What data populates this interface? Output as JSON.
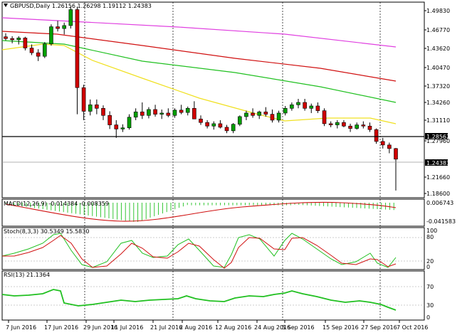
{
  "colors": {
    "bull": "#00a000",
    "bear": "#d00000",
    "wick": "#000000",
    "ma_pink": "#e040e0",
    "ma_red": "#d01010",
    "ma_green": "#20c020",
    "ma_yellow": "#f0e020",
    "macd_hist": "#20c020",
    "macd_signal": "#d01010",
    "stoch_main": "#20c020",
    "stoch_signal": "#d01010",
    "rsi": "#20c020"
  },
  "main": {
    "symbol": "GBPUSD",
    "timeframe": "Daily",
    "title": "GBPUSD,Daily  1.26156 1.26298 1.19112 1.24383",
    "y_labels": [
      "1.49830",
      "1.46770",
      "1.43620",
      "1.40470",
      "1.37320",
      "1.34260",
      "1.31110",
      "1.28562",
      "1.27960",
      "1.24383",
      "1.21660",
      "1.18600"
    ],
    "support_tag": "1.28562",
    "price_tag": "1.24383"
  },
  "macd": {
    "title": "MACD(12,26,9) -0.014384 -0.008359",
    "y_labels": [
      "0.006743",
      "-0.041583"
    ]
  },
  "stoch": {
    "title": "Stoch(8,3,3) 30.5349 15.5830",
    "y_labels": [
      "100",
      "80",
      "20",
      "0"
    ]
  },
  "rsi": {
    "title": "RSI(13) 21.1364",
    "y_labels": [
      "70",
      "30",
      "0"
    ]
  },
  "x_labels": [
    "7 Jun 2016",
    "17 Jun 2016",
    "29 Jun 2016",
    "11 Jul 2016",
    "21 Jul 2016",
    "2 Aug 2016",
    "12 Aug 2016",
    "24 Aug 2016",
    "5 Sep 2016",
    "15 Sep 2016",
    "27 Sep 2016",
    "7 Oct 2016"
  ],
  "chart_data": {
    "type": "candlestick",
    "symbol": "GBPUSD",
    "timeframe": "Daily",
    "candles_ohlc": [
      [
        1.451,
        1.457,
        1.445,
        1.448
      ],
      [
        1.448,
        1.452,
        1.44,
        1.446
      ],
      [
        1.446,
        1.452,
        1.438,
        1.449
      ],
      [
        1.449,
        1.451,
        1.428,
        1.432
      ],
      [
        1.432,
        1.438,
        1.42,
        1.424
      ],
      [
        1.424,
        1.43,
        1.41,
        1.418
      ],
      [
        1.418,
        1.442,
        1.415,
        1.439
      ],
      [
        1.439,
        1.472,
        1.436,
        1.468
      ],
      [
        1.468,
        1.478,
        1.46,
        1.465
      ],
      [
        1.465,
        1.475,
        1.455,
        1.47
      ],
      [
        1.47,
        1.502,
        1.465,
        1.497
      ],
      [
        1.497,
        1.502,
        1.32,
        1.365
      ],
      [
        1.365,
        1.37,
        1.31,
        1.325
      ],
      [
        1.325,
        1.345,
        1.318,
        1.336
      ],
      [
        1.336,
        1.345,
        1.32,
        1.33
      ],
      [
        1.33,
        1.335,
        1.31,
        1.318
      ],
      [
        1.318,
        1.325,
        1.295,
        1.302
      ],
      [
        1.302,
        1.31,
        1.28,
        1.295
      ],
      [
        1.295,
        1.303,
        1.29,
        1.297
      ],
      [
        1.297,
        1.32,
        1.294,
        1.315
      ],
      [
        1.315,
        1.33,
        1.31,
        1.324
      ],
      [
        1.324,
        1.34,
        1.312,
        1.318
      ],
      [
        1.318,
        1.332,
        1.313,
        1.328
      ],
      [
        1.328,
        1.336,
        1.316,
        1.32
      ],
      [
        1.32,
        1.328,
        1.312,
        1.322
      ],
      [
        1.322,
        1.33,
        1.315,
        1.318
      ],
      [
        1.318,
        1.33,
        1.314,
        1.327
      ],
      [
        1.327,
        1.336,
        1.32,
        1.323
      ],
      [
        1.323,
        1.333,
        1.318,
        1.33
      ],
      [
        1.33,
        1.342,
        1.325,
        1.312
      ],
      [
        1.312,
        1.318,
        1.302,
        1.306
      ],
      [
        1.306,
        1.31,
        1.296,
        1.3
      ],
      [
        1.3,
        1.308,
        1.294,
        1.304
      ],
      [
        1.304,
        1.31,
        1.296,
        1.298
      ],
      [
        1.298,
        1.302,
        1.288,
        1.292
      ],
      [
        1.292,
        1.305,
        1.288,
        1.303
      ],
      [
        1.303,
        1.318,
        1.3,
        1.316
      ],
      [
        1.316,
        1.326,
        1.31,
        1.322
      ],
      [
        1.322,
        1.33,
        1.314,
        1.318
      ],
      [
        1.318,
        1.326,
        1.312,
        1.324
      ],
      [
        1.324,
        1.332,
        1.316,
        1.32
      ],
      [
        1.32,
        1.328,
        1.306,
        1.31
      ],
      [
        1.31,
        1.326,
        1.306,
        1.322
      ],
      [
        1.322,
        1.334,
        1.318,
        1.33
      ],
      [
        1.33,
        1.34,
        1.326,
        1.336
      ],
      [
        1.336,
        1.346,
        1.33,
        1.34
      ],
      [
        1.34,
        1.346,
        1.326,
        1.33
      ],
      [
        1.33,
        1.338,
        1.322,
        1.334
      ],
      [
        1.334,
        1.34,
        1.322,
        1.326
      ],
      [
        1.326,
        1.33,
        1.3,
        1.304
      ],
      [
        1.304,
        1.308,
        1.298,
        1.302
      ],
      [
        1.302,
        1.31,
        1.296,
        1.306
      ],
      [
        1.306,
        1.31,
        1.298,
        1.3
      ],
      [
        1.3,
        1.304,
        1.29,
        1.296
      ],
      [
        1.296,
        1.306,
        1.294,
        1.302
      ],
      [
        1.302,
        1.308,
        1.296,
        1.3
      ],
      [
        1.3,
        1.306,
        1.29,
        1.294
      ],
      [
        1.294,
        1.296,
        1.27,
        1.274
      ],
      [
        1.274,
        1.28,
        1.262,
        1.268
      ],
      [
        1.268,
        1.272,
        1.254,
        1.262
      ],
      [
        1.262,
        1.263,
        1.191,
        1.244
      ]
    ],
    "horizontal_levels": [
      1.28562
    ],
    "y_range": [
      1.186,
      1.5
    ],
    "indicators": [
      "MA pink",
      "MA red",
      "MA green",
      "MA yellow",
      "MACD(12,26,9)",
      "Stoch(8,3,3)",
      "RSI(13)"
    ],
    "macd_values": {
      "main": -0.014384,
      "signal": -0.008359
    },
    "stoch_values": {
      "k": 30.5349,
      "d": 15.583
    },
    "rsi_value": 21.1364
  }
}
